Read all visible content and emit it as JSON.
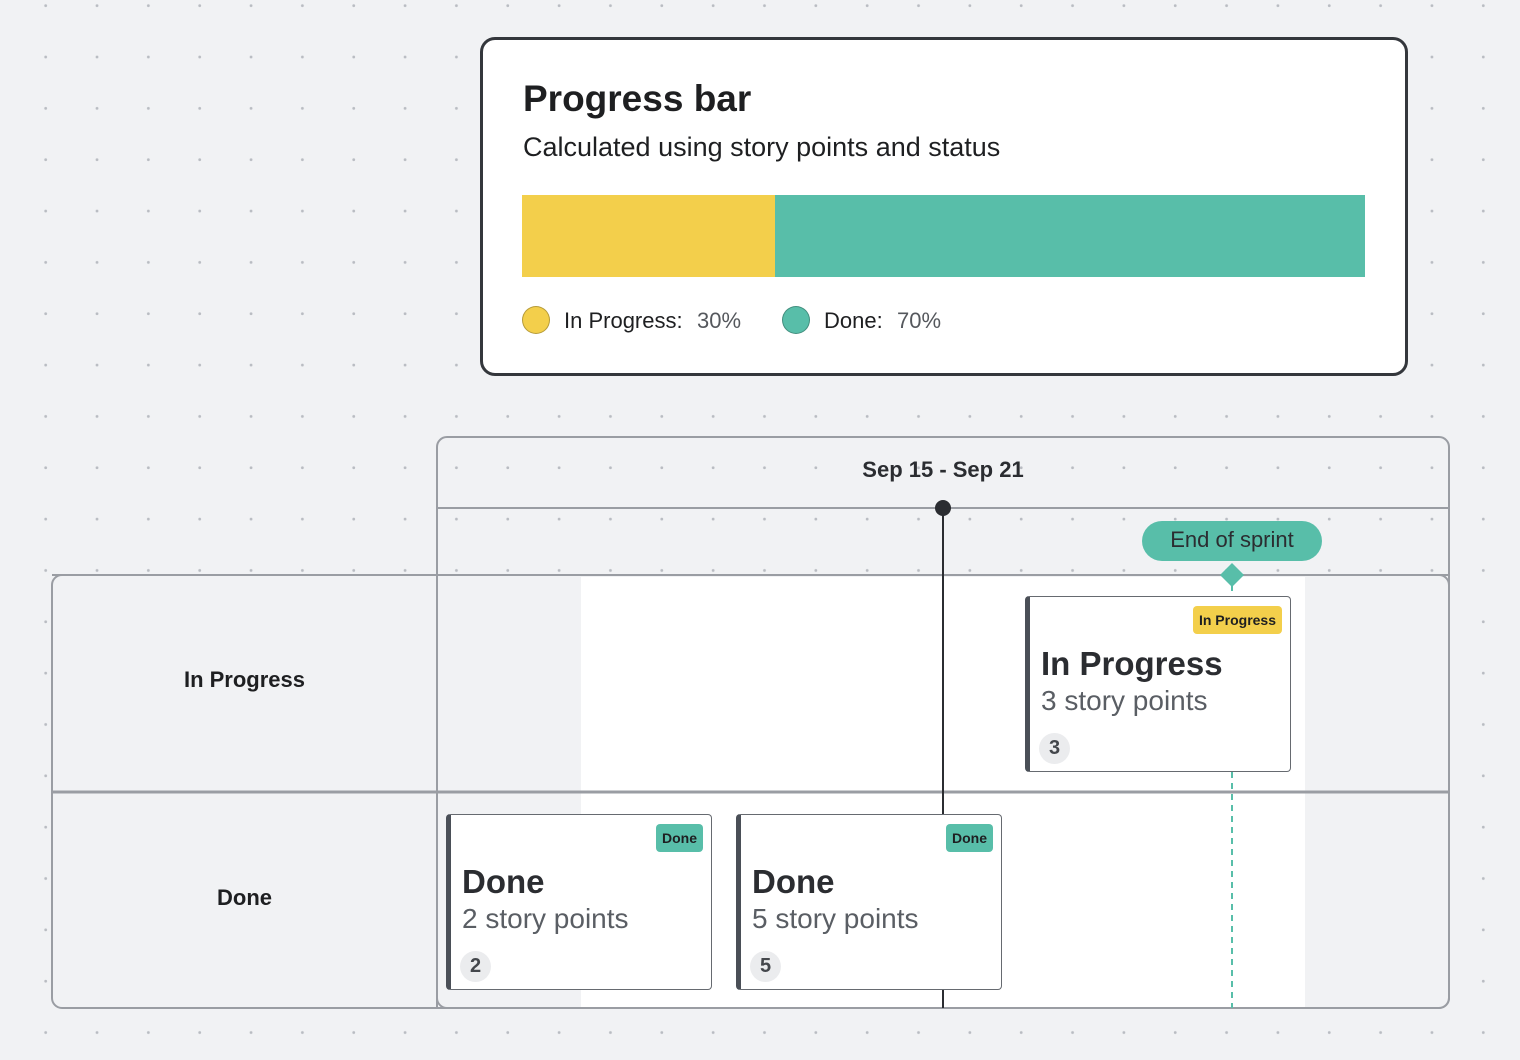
{
  "progress": {
    "title": "Progress bar",
    "subtitle": "Calculated using story points and status",
    "segments": [
      {
        "name": "In Progress:",
        "value": 30,
        "value_label": "30%",
        "color": "#f3cf4b"
      },
      {
        "name": "Done:",
        "value": 70,
        "value_label": "70%",
        "color": "#58bea9"
      }
    ]
  },
  "timeline": {
    "header": "Sep 15 - Sep 21",
    "marker": "End of sprint",
    "rows": [
      {
        "label": "In Progress",
        "cards": [
          {
            "tag": "In Progress",
            "title": "In Progress",
            "subtitle": "3 story points",
            "points": 3
          }
        ]
      },
      {
        "label": "Done",
        "cards": [
          {
            "tag": "Done",
            "title": "Done",
            "subtitle": "2 story points",
            "points": 2
          },
          {
            "tag": "Done",
            "title": "Done",
            "subtitle": "5 story points",
            "points": 5
          }
        ]
      }
    ]
  }
}
